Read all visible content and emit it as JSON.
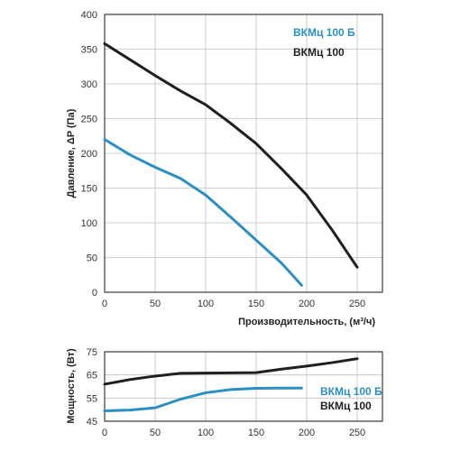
{
  "colors": {
    "blue": "#2b8fc4",
    "black": "#1f1f1f",
    "grid": "#bfbfbf",
    "frame": "#3a3a3a"
  },
  "chart_data": [
    {
      "type": "line",
      "title": "",
      "xlabel": "Производительность, (м³/ч)",
      "ylabel": "Давление, ΔP (Па)",
      "xlim": [
        0,
        275
      ],
      "ylim": [
        0,
        400
      ],
      "xticks": [
        0,
        50,
        100,
        150,
        200,
        250
      ],
      "yticks": [
        0,
        50,
        100,
        150,
        200,
        250,
        300,
        350,
        400
      ],
      "grid": true,
      "legend": "top-right",
      "series": [
        {
          "name": "ВКМц 100 Б",
          "color": "#2b8fc4",
          "x": [
            0,
            25,
            50,
            75,
            100,
            125,
            150,
            175,
            195
          ],
          "y": [
            220,
            198,
            180,
            164,
            140,
            108,
            75,
            42,
            10
          ]
        },
        {
          "name": "ВКМц 100",
          "color": "#1f1f1f",
          "x": [
            0,
            25,
            50,
            75,
            100,
            125,
            150,
            175,
            200,
            225,
            250
          ],
          "y": [
            358,
            335,
            312,
            290,
            270,
            243,
            214,
            178,
            140,
            90,
            36
          ]
        }
      ]
    },
    {
      "type": "line",
      "title": "",
      "xlabel": "",
      "ylabel": "Мощность, (Вт)",
      "xlim": [
        0,
        275
      ],
      "ylim": [
        45,
        75
      ],
      "xticks": [
        0,
        50,
        100,
        150,
        200,
        250
      ],
      "yticks": [
        45,
        55,
        65,
        75
      ],
      "grid": true,
      "legend": "bottom-right",
      "series": [
        {
          "name": "ВКМц 100 Б",
          "color": "#2b8fc4",
          "x": [
            0,
            25,
            50,
            75,
            100,
            125,
            150,
            175,
            195
          ],
          "y": [
            49.5,
            49.8,
            50.8,
            54.5,
            57.3,
            58.7,
            59.2,
            59.3,
            59.3
          ]
        },
        {
          "name": "ВКМц 100",
          "color": "#1f1f1f",
          "x": [
            0,
            25,
            50,
            75,
            100,
            125,
            150,
            175,
            200,
            225,
            250
          ],
          "y": [
            61,
            63,
            64.5,
            65.7,
            65.8,
            65.9,
            66,
            67.5,
            68.8,
            70.3,
            72
          ]
        }
      ]
    }
  ]
}
